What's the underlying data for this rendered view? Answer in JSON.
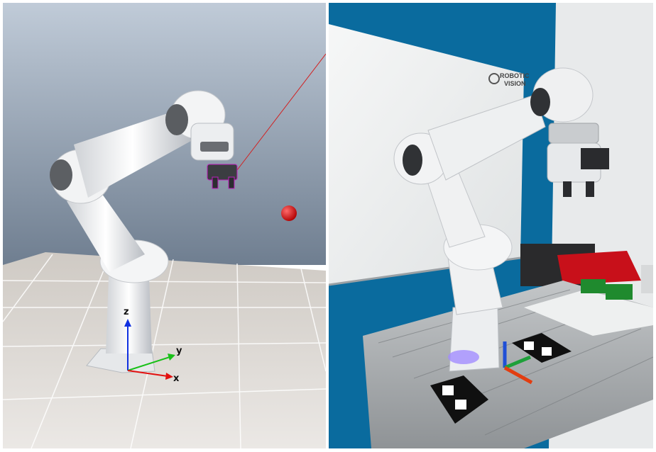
{
  "simulation": {
    "axes": {
      "x_label": "x",
      "y_label": "y",
      "z_label": "z"
    },
    "target_color": "#e01010",
    "ray_color": "#d22020",
    "axis_colors": {
      "x": "#e21010",
      "y": "#18c018",
      "z": "#1030e0"
    }
  },
  "photo": {
    "logo": {
      "line1": "ROBOTIC",
      "line2": "VISION"
    },
    "wall_color": "#0a6b9e",
    "whiteboard_color": "#f1f2f2"
  }
}
